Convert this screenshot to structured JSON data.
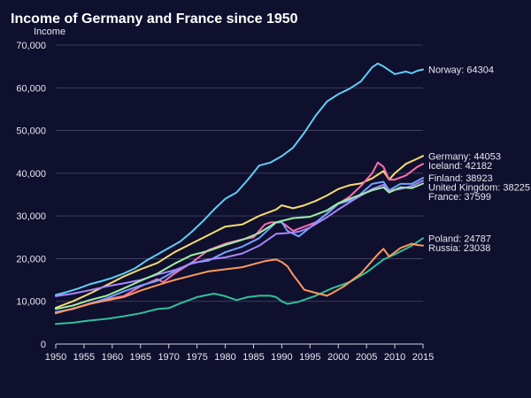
{
  "chart_data": {
    "type": "line",
    "title": "Income of Germany and France since 1950",
    "ylabel": "Income",
    "xlabel": "",
    "xlim": [
      1950,
      2015
    ],
    "ylim": [
      0,
      70000
    ],
    "x_ticks": [
      1950,
      1955,
      1960,
      1965,
      1970,
      1975,
      1980,
      1985,
      1990,
      1995,
      2000,
      2005,
      2010,
      2015
    ],
    "y_ticks": [
      0,
      10000,
      20000,
      30000,
      40000,
      50000,
      60000,
      70000
    ],
    "y_tick_labels": [
      "0",
      "10,000",
      "20,000",
      "30,000",
      "40,000",
      "50,000",
      "60,000",
      "70,000"
    ],
    "grid": "horizontal",
    "legend": "end-of-line labels",
    "series": [
      {
        "name": "Norway",
        "color": "#5ecff5",
        "end_label": "Norway: 64304",
        "x": [
          1950,
          1952,
          1954,
          1956,
          1958,
          1960,
          1962,
          1964,
          1966,
          1968,
          1970,
          1972,
          1974,
          1976,
          1978,
          1980,
          1982,
          1984,
          1986,
          1988,
          1990,
          1992,
          1994,
          1996,
          1998,
          2000,
          2002,
          2004,
          2006,
          2007,
          2008,
          2010,
          2012,
          2013,
          2014,
          2015
        ],
        "values": [
          11500,
          12200,
          13000,
          14000,
          14700,
          15500,
          16500,
          17700,
          19500,
          21000,
          22500,
          24000,
          26200,
          28700,
          31500,
          34000,
          35500,
          38500,
          41800,
          42500,
          44000,
          46000,
          49500,
          53500,
          56800,
          58500,
          59800,
          61500,
          64800,
          65700,
          65000,
          63200,
          63800,
          63400,
          64000,
          64304
        ]
      },
      {
        "name": "Germany",
        "color": "#f7dd6e",
        "end_label": "Germany: 44053",
        "x": [
          1950,
          1953,
          1956,
          1959,
          1962,
          1965,
          1968,
          1971,
          1974,
          1977,
          1980,
          1983,
          1986,
          1989,
          1990,
          1992,
          1994,
          1996,
          1998,
          2000,
          2002,
          2004,
          2006,
          2008,
          2009,
          2010,
          2012,
          2014,
          2015
        ],
        "values": [
          8500,
          10000,
          11800,
          13800,
          15800,
          17500,
          19000,
          21500,
          23500,
          25500,
          27500,
          28000,
          30000,
          31500,
          32500,
          31800,
          32500,
          33500,
          34800,
          36300,
          37200,
          37600,
          38800,
          40500,
          38500,
          40000,
          42200,
          43400,
          44053
        ]
      },
      {
        "name": "Iceland",
        "color": "#ff6fb0",
        "end_label": "Iceland: 42182",
        "x": [
          1950,
          1953,
          1956,
          1959,
          1962,
          1965,
          1968,
          1969,
          1971,
          1974,
          1977,
          1980,
          1983,
          1985,
          1987,
          1988,
          1990,
          1992,
          1994,
          1996,
          1998,
          2000,
          2002,
          2004,
          2006,
          2007,
          2008,
          2009,
          2010,
          2012,
          2014,
          2015
        ],
        "values": [
          7500,
          8200,
          9500,
          10500,
          11200,
          13500,
          15200,
          14500,
          16500,
          19000,
          22000,
          23500,
          24500,
          25000,
          28000,
          28500,
          28500,
          26500,
          27500,
          28500,
          30500,
          32800,
          34500,
          37000,
          40000,
          42500,
          41500,
          38500,
          38500,
          39500,
          41500,
          42182
        ]
      },
      {
        "name": "Finland",
        "color": "#6fa4ff",
        "end_label": "Finland: 38923",
        "x": [
          1950,
          1953,
          1956,
          1959,
          1962,
          1965,
          1968,
          1971,
          1974,
          1977,
          1980,
          1983,
          1986,
          1989,
          1990,
          1991,
          1993,
          1995,
          1997,
          2000,
          2003,
          2006,
          2008,
          2009,
          2011,
          2013,
          2015
        ],
        "values": [
          7500,
          8200,
          9400,
          10700,
          12300,
          13700,
          14800,
          17000,
          19000,
          19500,
          21500,
          22800,
          24800,
          28500,
          28500,
          26500,
          25200,
          27300,
          29500,
          32800,
          34000,
          37500,
          38000,
          36000,
          37500,
          37500,
          38923
        ]
      },
      {
        "name": "United Kingdom",
        "color": "#a987ff",
        "end_label": "United Kingdom: 38225",
        "x": [
          1950,
          1953,
          1956,
          1959,
          1962,
          1965,
          1968,
          1971,
          1974,
          1977,
          1980,
          1983,
          1986,
          1989,
          1991,
          1993,
          1995,
          1998,
          2000,
          2003,
          2006,
          2008,
          2009,
          2011,
          2013,
          2015
        ],
        "values": [
          11200,
          11800,
          12600,
          13500,
          14200,
          15000,
          16300,
          17300,
          18800,
          19800,
          20300,
          21200,
          23000,
          25800,
          26000,
          26300,
          27300,
          29700,
          31500,
          34000,
          36300,
          37300,
          36000,
          36300,
          37000,
          38225
        ]
      },
      {
        "name": "France",
        "color": "#9ff0a4",
        "end_label": "France: 37599",
        "x": [
          1950,
          1953,
          1956,
          1959,
          1962,
          1965,
          1968,
          1971,
          1974,
          1977,
          1980,
          1983,
          1986,
          1989,
          1992,
          1995,
          1998,
          2000,
          2003,
          2006,
          2008,
          2009,
          2011,
          2013,
          2015
        ],
        "values": [
          8200,
          9000,
          10300,
          11300,
          13000,
          14800,
          16500,
          18800,
          20800,
          21800,
          23200,
          24400,
          26000,
          28500,
          29500,
          29800,
          31300,
          33000,
          34500,
          36000,
          36700,
          35500,
          36700,
          36500,
          37599
        ]
      },
      {
        "name": "Poland",
        "color": "#2ec29a",
        "end_label": "Poland: 24787",
        "x": [
          1950,
          1953,
          1956,
          1959,
          1962,
          1965,
          1968,
          1970,
          1972,
          1975,
          1978,
          1980,
          1982,
          1984,
          1986,
          1988,
          1989,
          1990,
          1991,
          1993,
          1996,
          1999,
          2002,
          2005,
          2008,
          2010,
          2013,
          2015
        ],
        "values": [
          4700,
          5000,
          5500,
          5900,
          6500,
          7200,
          8200,
          8400,
          9500,
          11000,
          11800,
          11200,
          10300,
          11000,
          11300,
          11300,
          11000,
          10000,
          9400,
          9900,
          11300,
          13100,
          14500,
          16800,
          19800,
          21000,
          23000,
          24787
        ]
      },
      {
        "name": "Russia",
        "color": "#ff9a5c",
        "end_label": "Russia: 23038",
        "x": [
          1950,
          1953,
          1956,
          1959,
          1962,
          1965,
          1968,
          1971,
          1974,
          1977,
          1980,
          1983,
          1985,
          1987,
          1989,
          1990,
          1991,
          1992,
          1993,
          1994,
          1996,
          1998,
          1999,
          2001,
          2004,
          2007,
          2008,
          2009,
          2011,
          2013,
          2014,
          2015
        ],
        "values": [
          7200,
          8300,
          9400,
          10200,
          11000,
          12500,
          13800,
          15000,
          16000,
          17000,
          17500,
          18000,
          18700,
          19400,
          19800,
          19200,
          18200,
          16200,
          14500,
          12700,
          12000,
          11300,
          12000,
          13500,
          16500,
          21000,
          22300,
          20500,
          22500,
          23500,
          23200,
          23038
        ]
      }
    ]
  }
}
